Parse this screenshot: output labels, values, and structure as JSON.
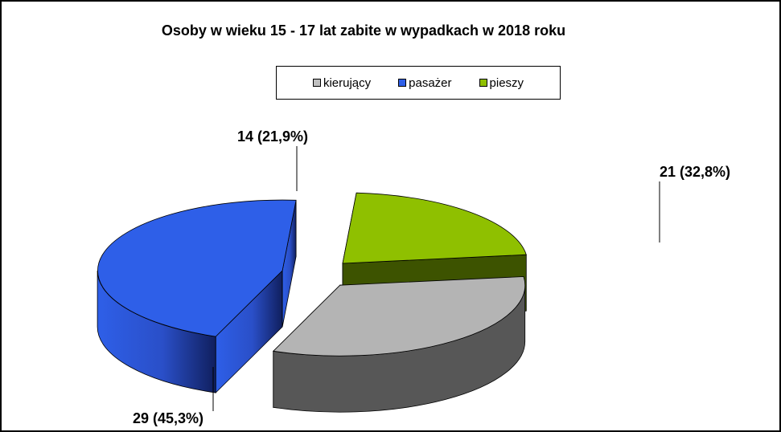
{
  "chart_data": {
    "type": "pie",
    "title": "Osoby w wieku 15 - 17 lat zabite w wypadkach w 2018 roku",
    "categories": [
      "kierujący",
      "pasażer",
      "pieszy"
    ],
    "values": [
      21,
      29,
      14
    ],
    "percentages": [
      32.8,
      45.3,
      21.9
    ],
    "data_labels": [
      "21 (32,8%)",
      "29 (45,3%)",
      "14 (21,9%)"
    ],
    "colors": [
      "#b4b4b4",
      "#2e5fe8",
      "#8fc000"
    ],
    "style": "3d-exploded",
    "legend": {
      "position": "top",
      "entries": [
        {
          "label": "kierujący",
          "color": "#c0c0c0"
        },
        {
          "label": "pasażer",
          "color": "#2e5fe8"
        },
        {
          "label": "pieszy",
          "color": "#8fc000"
        }
      ]
    }
  }
}
